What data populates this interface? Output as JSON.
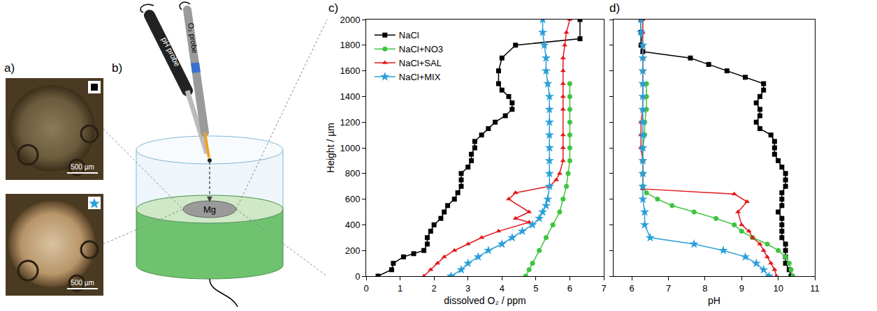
{
  "figure": {
    "letters": {
      "a": "a)",
      "b": "b)",
      "c": "c)",
      "d": "d)"
    },
    "photos": [
      {
        "scale_bar": "500 µm",
        "marker": "square",
        "color": "#000000"
      },
      {
        "scale_bar": "500 µm",
        "marker": "star",
        "color": "#2a9fd8"
      }
    ],
    "schematic": {
      "probe_1": "pH probe",
      "probe_2": "O₂ probe",
      "sample": "Mg"
    }
  },
  "chart_data": [
    {
      "type": "line",
      "x_label": "dissolved O₂ / ppm",
      "y_label": "Height / µm",
      "xlim": [
        0,
        7
      ],
      "xticks": [
        0,
        1,
        2,
        3,
        4,
        5,
        6,
        7
      ],
      "ylim": [
        0,
        2000
      ],
      "yticks": [
        0,
        200,
        400,
        600,
        800,
        1000,
        1200,
        1400,
        1600,
        1800,
        2000
      ],
      "legend": "upper left",
      "series": [
        {
          "name": "NaCl",
          "color": "#000000",
          "marker": "square",
          "line_style": "solid",
          "x": [
            6.3,
            6.3,
            4.4,
            4.0,
            3.9,
            3.9,
            4.0,
            4.2,
            4.3,
            4.3,
            4.1,
            3.8,
            3.6,
            3.4,
            3.2,
            3.2,
            3.1,
            3.1,
            3.0,
            2.8,
            2.8,
            2.8,
            2.7,
            2.6,
            2.4,
            2.3,
            2.2,
            2.0,
            1.9,
            1.8,
            1.8,
            1.7,
            1.4,
            1.1,
            0.8,
            0.75,
            0.35
          ],
          "y": [
            2000,
            1850,
            1800,
            1700,
            1600,
            1500,
            1450,
            1400,
            1350,
            1300,
            1250,
            1200,
            1150,
            1100,
            1050,
            1000,
            950,
            900,
            850,
            800,
            750,
            700,
            650,
            600,
            550,
            500,
            450,
            400,
            350,
            300,
            250,
            200,
            175,
            150,
            100,
            50,
            0
          ]
        },
        {
          "name": "NaCl+NO3",
          "color": "#3ec43e",
          "marker": "circle",
          "line_style": "solid",
          "x": [
            6.0,
            6.0,
            6.0,
            6.0,
            6.0,
            6.0,
            6.0,
            5.95,
            5.9,
            5.8,
            5.7,
            5.5,
            5.3,
            5.1,
            4.9,
            4.8,
            4.7
          ],
          "y": [
            1500,
            1400,
            1300,
            1200,
            1100,
            1000,
            900,
            800,
            700,
            600,
            500,
            400,
            300,
            200,
            100,
            50,
            0
          ]
        },
        {
          "name": "NaCl+SAL",
          "color": "#e3181c",
          "marker": "triangle",
          "line_style": "solid",
          "x": [
            6.0,
            5.9,
            5.85,
            5.8,
            5.8,
            5.8,
            5.8,
            5.8,
            5.8,
            5.8,
            5.8,
            5.7,
            5.6,
            5.4,
            4.4,
            4.2,
            4.8,
            4.4,
            4.8,
            3.9,
            3.4,
            3.0,
            2.6,
            2.3,
            2.1,
            1.9,
            1.7
          ],
          "y": [
            2000,
            1900,
            1800,
            1700,
            1600,
            1500,
            1400,
            1300,
            1100,
            1000,
            900,
            800,
            750,
            700,
            650,
            600,
            500,
            450,
            420,
            350,
            300,
            250,
            200,
            150,
            100,
            50,
            0
          ]
        },
        {
          "name": "NaCl+MIX",
          "color": "#2a9fd8",
          "marker": "star",
          "line_style": "solid",
          "x": [
            5.2,
            5.2,
            5.25,
            5.3,
            5.3,
            5.35,
            5.4,
            5.4,
            5.4,
            5.4,
            5.4,
            5.4,
            5.4,
            5.4,
            5.35,
            5.3,
            5.2,
            5.1,
            4.9,
            4.6,
            4.3,
            4.0,
            3.6,
            3.3,
            3.0,
            2.8,
            2.5
          ],
          "y": [
            2000,
            1900,
            1800,
            1700,
            1600,
            1500,
            1400,
            1300,
            1200,
            1100,
            1000,
            900,
            800,
            700,
            600,
            550,
            500,
            450,
            400,
            350,
            300,
            250,
            200,
            150,
            100,
            50,
            0
          ]
        }
      ]
    },
    {
      "type": "line",
      "x_label": "pH",
      "xlim": [
        5.5,
        11
      ],
      "xticks": [
        6,
        7,
        8,
        9,
        10,
        11
      ],
      "ylim": [
        0,
        2000
      ],
      "yticks": [
        0,
        200,
        400,
        600,
        800,
        1000,
        1200,
        1400,
        1600,
        1800,
        2000
      ],
      "tick_labels": "x",
      "series": [
        {
          "name": "NaCl",
          "color": "#000000",
          "marker": "square",
          "line_style": "solid",
          "x": [
            6.25,
            6.25,
            6.25,
            6.3,
            7.6,
            8.1,
            8.6,
            9.1,
            9.6,
            9.6,
            9.5,
            9.4,
            9.5,
            9.5,
            9.4,
            9.5,
            9.8,
            9.9,
            9.9,
            9.9,
            10.0,
            10.1,
            10.2,
            10.2,
            10.2,
            10.1,
            10.1,
            10.1,
            10.0,
            10.1,
            10.1,
            10.1,
            10.1,
            10.2,
            10.2,
            10.2,
            10.2,
            10.3,
            10.35
          ],
          "y": [
            2000,
            1900,
            1800,
            1750,
            1700,
            1650,
            1600,
            1550,
            1500,
            1450,
            1400,
            1350,
            1300,
            1250,
            1200,
            1150,
            1100,
            1050,
            1000,
            950,
            900,
            850,
            800,
            750,
            700,
            650,
            600,
            550,
            500,
            450,
            400,
            350,
            300,
            250,
            200,
            150,
            100,
            50,
            0
          ]
        },
        {
          "name": "NaCl+NO3",
          "color": "#3ec43e",
          "marker": "circle",
          "line_style": "solid",
          "x": [
            6.4,
            6.4,
            6.4,
            6.35,
            6.35,
            6.3,
            6.3,
            6.3,
            6.3,
            6.4,
            6.7,
            7.1,
            7.7,
            8.3,
            8.8,
            9.0,
            9.3,
            9.7,
            10.0,
            10.2,
            10.3,
            10.35,
            10.4
          ],
          "y": [
            1500,
            1400,
            1300,
            1200,
            1100,
            1000,
            900,
            800,
            700,
            650,
            600,
            550,
            500,
            450,
            400,
            350,
            300,
            250,
            200,
            150,
            100,
            50,
            0
          ]
        },
        {
          "name": "NaCl+SAL",
          "color": "#e3181c",
          "marker": "triangle",
          "line_style": "solid",
          "x": [
            6.3,
            6.3,
            6.3,
            6.3,
            6.3,
            6.3,
            6.3,
            6.3,
            6.25,
            6.25,
            6.25,
            6.3,
            6.3,
            6.3,
            8.8,
            9.15,
            8.9,
            9.0,
            9.2,
            9.3,
            9.5,
            9.6,
            9.7,
            9.8,
            9.9,
            9.95
          ],
          "y": [
            2000,
            1900,
            1800,
            1700,
            1600,
            1500,
            1400,
            1300,
            1200,
            1100,
            1000,
            900,
            800,
            680,
            640,
            580,
            500,
            400,
            350,
            300,
            250,
            200,
            150,
            100,
            50,
            0
          ]
        },
        {
          "name": "NaCl+MIX",
          "color": "#2a9fd8",
          "marker": "star",
          "line_style": "solid",
          "x": [
            6.25,
            6.25,
            6.3,
            6.3,
            6.3,
            6.3,
            6.3,
            6.3,
            6.3,
            6.3,
            6.3,
            6.3,
            6.3,
            6.3,
            6.3,
            6.35,
            6.35,
            6.5,
            7.7,
            8.5,
            9.1,
            9.4,
            9.6,
            9.75
          ],
          "y": [
            2000,
            1900,
            1800,
            1700,
            1600,
            1500,
            1400,
            1300,
            1200,
            1100,
            1000,
            900,
            800,
            700,
            600,
            500,
            400,
            300,
            250,
            200,
            150,
            100,
            50,
            0
          ]
        }
      ]
    }
  ]
}
